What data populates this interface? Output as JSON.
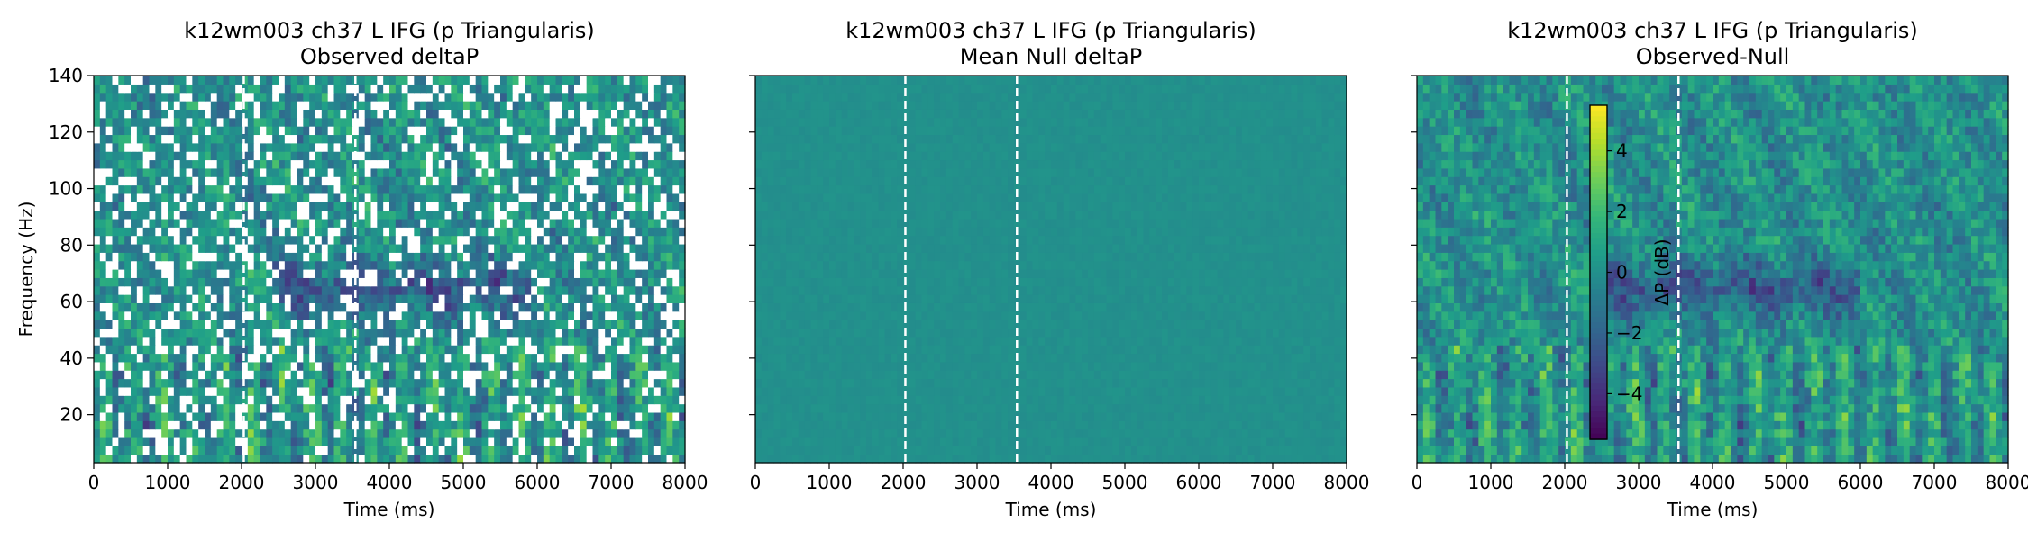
{
  "chart_data": [
    {
      "type": "heatmap",
      "title": "k12wm003 ch37 L IFG (p Triangularis)",
      "subtitle": "Observed deltaP",
      "xlabel": "Time (ms)",
      "ylabel": "Frequency (Hz)",
      "xlim": [
        0,
        8000
      ],
      "ylim": [
        3,
        140
      ],
      "xticks": [
        "0",
        "1000",
        "2000",
        "3000",
        "4000",
        "5000",
        "6000",
        "7000",
        "8000"
      ],
      "yticks": [
        "20",
        "40",
        "60",
        "80",
        "100",
        "120",
        "140"
      ],
      "event_lines_ms": [
        2030,
        3540
      ],
      "variant": "observed-masked",
      "show_ytick_labels": true,
      "colormap": "viridis"
    },
    {
      "type": "heatmap",
      "title": "k12wm003 ch37 L IFG (p Triangularis)",
      "subtitle": "Mean Null deltaP",
      "xlabel": "Time (ms)",
      "ylabel": "",
      "xlim": [
        0,
        8000
      ],
      "ylim": [
        3,
        140
      ],
      "xticks": [
        "0",
        "1000",
        "2000",
        "3000",
        "4000",
        "5000",
        "6000",
        "7000",
        "8000"
      ],
      "yticks": [
        "20",
        "40",
        "60",
        "80",
        "100",
        "120",
        "140"
      ],
      "event_lines_ms": [
        2030,
        3540
      ],
      "variant": "null",
      "show_ytick_labels": false,
      "colormap": "viridis"
    },
    {
      "type": "heatmap",
      "title": "k12wm003 ch37 L IFG (p Triangularis)",
      "subtitle": "Observed-Null",
      "xlabel": "Time (ms)",
      "ylabel": "",
      "xlim": [
        0,
        8000
      ],
      "ylim": [
        3,
        140
      ],
      "xticks": [
        "0",
        "1000",
        "2000",
        "3000",
        "4000",
        "5000",
        "6000",
        "7000",
        "8000"
      ],
      "yticks": [
        "20",
        "40",
        "60",
        "80",
        "100",
        "120",
        "140"
      ],
      "event_lines_ms": [
        2030,
        3540
      ],
      "variant": "difference",
      "show_ytick_labels": false,
      "colormap": "viridis",
      "colorbar": {
        "label": "ΔP (dB)",
        "range": [
          -5.5,
          5.5
        ],
        "ticks": [
          "4",
          "2",
          "0",
          "−2",
          "−4"
        ]
      }
    }
  ]
}
